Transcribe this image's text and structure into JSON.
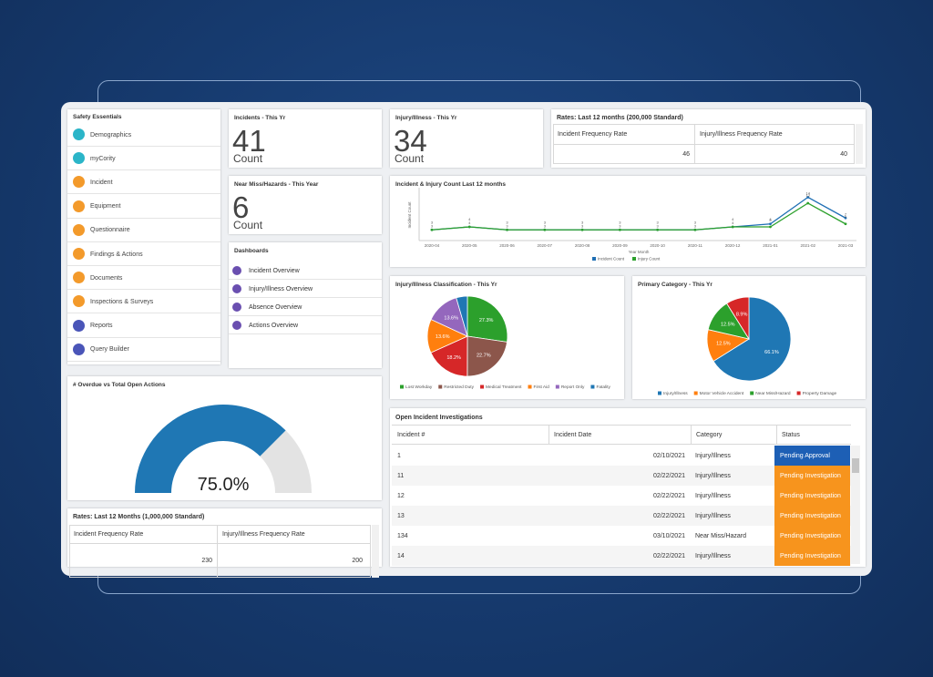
{
  "sidebar": {
    "title": "Safety Essentials",
    "items": [
      {
        "label": "Demographics",
        "color": "#2bb5c8"
      },
      {
        "label": "myCority",
        "color": "#2bb5c8"
      },
      {
        "label": "Incident",
        "color": "#f39a2b"
      },
      {
        "label": "Equipment",
        "color": "#f39a2b"
      },
      {
        "label": "Questionnaire",
        "color": "#f39a2b"
      },
      {
        "label": "Findings & Actions",
        "color": "#f39a2b"
      },
      {
        "label": "Documents",
        "color": "#f39a2b"
      },
      {
        "label": "Inspections & Surveys",
        "color": "#f39a2b"
      },
      {
        "label": "Reports",
        "color": "#4a55b8"
      },
      {
        "label": "Query Builder",
        "color": "#4a55b8"
      }
    ]
  },
  "kpis": [
    {
      "title": "Incidents - This Yr",
      "value": 41,
      "unit": "Count"
    },
    {
      "title": "Injury/Illness - This Yr",
      "value": 34,
      "unit": "Count"
    },
    {
      "title": "Near Miss/Hazards - This Year",
      "value": 6,
      "unit": "Count"
    }
  ],
  "rates_200k": {
    "title": "Rates: Last 12 months (200,000 Standard)",
    "columns": [
      "Incident Frequency Rate",
      "Injury/Illness Frequency Rate"
    ],
    "values": [
      46,
      40
    ]
  },
  "dashboards": {
    "title": "Dashboards",
    "items": [
      "Incident Overview",
      "Injury/Illness Overview",
      "Absence Overview",
      "Actions Overview"
    ],
    "color": "#6a4fb0"
  },
  "line_chart": {
    "type": "line",
    "title": "Incident & Injury Count Last 12 months",
    "x_label": "Year Month",
    "y_label": "Incident Count",
    "x": [
      "2020-04",
      "2020-05",
      "2020-06",
      "2020-07",
      "2020-08",
      "2020-09",
      "2020-10",
      "2020-11",
      "2020-12",
      "2021-01",
      "2021-02",
      "2021-03"
    ],
    "series": [
      {
        "name": "Incident Count",
        "color": "#1f6fb4",
        "values": [
          3,
          4,
          3,
          3,
          3,
          3,
          3,
          3,
          4,
          5,
          14,
          7
        ]
      },
      {
        "name": "Injury Count",
        "color": "#2ca02c",
        "values": [
          3,
          4,
          3,
          3,
          3,
          3,
          3,
          3,
          4,
          4,
          12,
          5
        ]
      }
    ],
    "ylim": [
      0,
      16
    ]
  },
  "pie_classification": {
    "type": "pie",
    "title": "Injury/Illness Classification - This Yr",
    "categories": [
      "Lost Workday",
      "Restricted Duty",
      "Medical Treatment",
      "First Aid",
      "Report Only",
      "Fatality"
    ],
    "values": [
      27.3,
      22.7,
      18.2,
      13.6,
      13.6,
      4.5
    ],
    "value_labels": [
      "27.3%",
      "22.7%",
      "18.2%",
      "13.6%",
      "13.6%",
      null
    ],
    "colors": [
      "#2ca02c",
      "#8c564b",
      "#d62728",
      "#ff7f0e",
      "#9467bd",
      "#1f77b4"
    ]
  },
  "pie_primary": {
    "type": "pie",
    "title": "Primary Category - This Yr",
    "categories": [
      "Injury/Illness",
      "Motor Vehicle Accident",
      "Near Miss/Hazard",
      "Property Damage"
    ],
    "values": [
      66.1,
      12.5,
      12.5,
      8.9
    ],
    "value_labels": [
      "66.1%",
      "12.5%",
      "12.5%",
      "8.9%"
    ],
    "colors": [
      "#1f77b4",
      "#ff7f0e",
      "#2ca02c",
      "#d62728"
    ]
  },
  "gauge": {
    "type": "gauge",
    "title": "# Overdue vs Total Open Actions",
    "value": 75,
    "value_label": "75.0%",
    "lim": [
      0,
      100
    ],
    "color": "#1f77b4",
    "track_color": "#e3e3e3"
  },
  "rates_1m": {
    "title": "Rates: Last 12 Months (1,000,000 Standard)",
    "columns": [
      "Incident Frequency Rate",
      "Injury/Illness Frequency Rate"
    ],
    "values": [
      230,
      200
    ]
  },
  "investigations": {
    "title": "Open Incident Investigations",
    "columns": [
      "Incident #",
      "Incident Date",
      "Category",
      "Status"
    ],
    "rows": [
      [
        1,
        "02/10/2021",
        "Injury/Illness",
        "Pending Approval"
      ],
      [
        11,
        "02/22/2021",
        "Injury/Illness",
        "Pending Investigation"
      ],
      [
        12,
        "02/22/2021",
        "Injury/Illness",
        "Pending Investigation"
      ],
      [
        13,
        "02/22/2021",
        "Injury/Illness",
        "Pending Investigation"
      ],
      [
        134,
        "03/10/2021",
        "Near Miss/Hazard",
        "Pending Investigation"
      ],
      [
        14,
        "02/22/2021",
        "Injury/Illness",
        "Pending Investigation"
      ]
    ],
    "status_colors": [
      "#1d5fb5",
      "#f7941d",
      "#f7941d",
      "#f7941d",
      "#f7941d",
      "#f7941d"
    ]
  }
}
